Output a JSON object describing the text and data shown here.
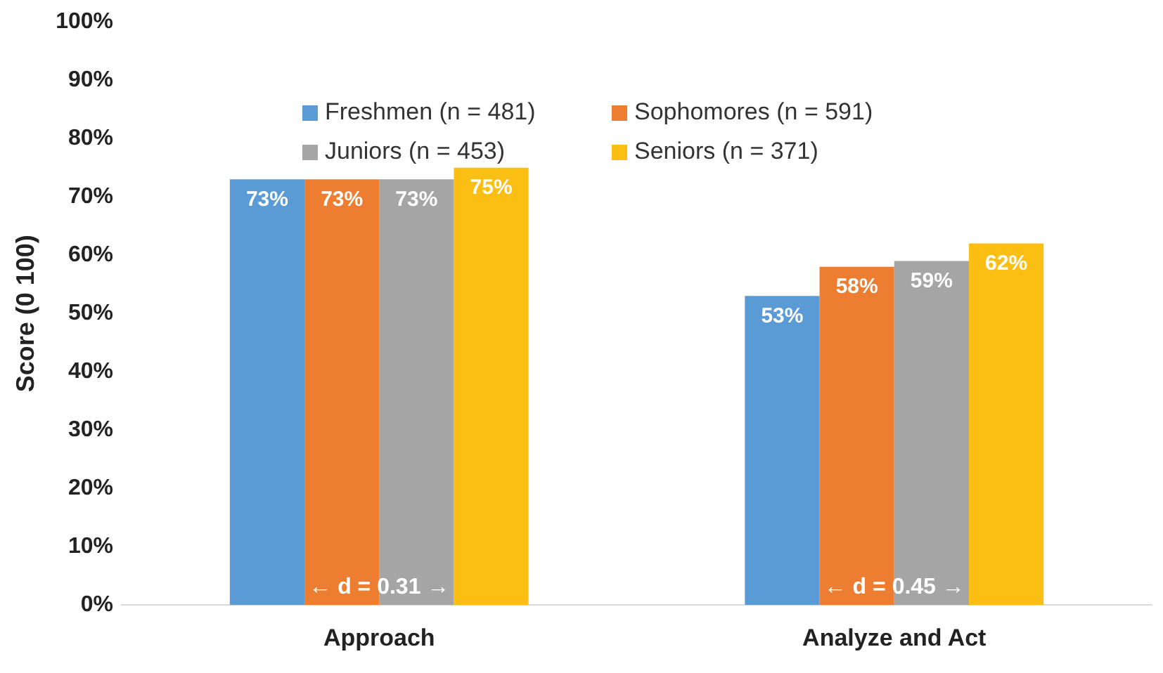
{
  "chart_data": {
    "type": "bar",
    "ylabel": "Score (0 100)",
    "categories": [
      "Approach",
      "Analyze and Act"
    ],
    "series": [
      {
        "name": "Freshmen (n = 481)",
        "color": "#5b9bd5",
        "values": [
          73,
          53
        ],
        "value_labels": [
          "73%",
          "53%"
        ]
      },
      {
        "name": "Sophomores (n = 591)",
        "color": "#ed7d31",
        "values": [
          73,
          58
        ],
        "value_labels": [
          "73%",
          "58%"
        ]
      },
      {
        "name": "Juniors (n = 453)",
        "color": "#a5a5a5",
        "values": [
          73,
          59
        ],
        "value_labels": [
          "73%",
          "59%"
        ]
      },
      {
        "name": "Seniors (n = 371)",
        "color": "#fbbf13",
        "values": [
          75,
          62
        ],
        "value_labels": [
          "75%",
          "62%"
        ]
      }
    ],
    "ylim": [
      0,
      100
    ],
    "yticks": [
      {
        "value": 0,
        "label": "0%"
      },
      {
        "value": 10,
        "label": "10%"
      },
      {
        "value": 20,
        "label": "20%"
      },
      {
        "value": 30,
        "label": "30%"
      },
      {
        "value": 40,
        "label": "40%"
      },
      {
        "value": 50,
        "label": "50%"
      },
      {
        "value": 60,
        "label": "60%"
      },
      {
        "value": 70,
        "label": "70%"
      },
      {
        "value": 80,
        "label": "80%"
      },
      {
        "value": 90,
        "label": "90%"
      },
      {
        "value": 100,
        "label": "100%"
      }
    ],
    "annotations": [
      {
        "text": "← d = 0.31 →",
        "x": "Approach",
        "y": 3
      },
      {
        "text": "← d = 0.45 →",
        "x": "Analyze and Act",
        "y": 3
      }
    ],
    "grid": false,
    "legend": "top"
  }
}
